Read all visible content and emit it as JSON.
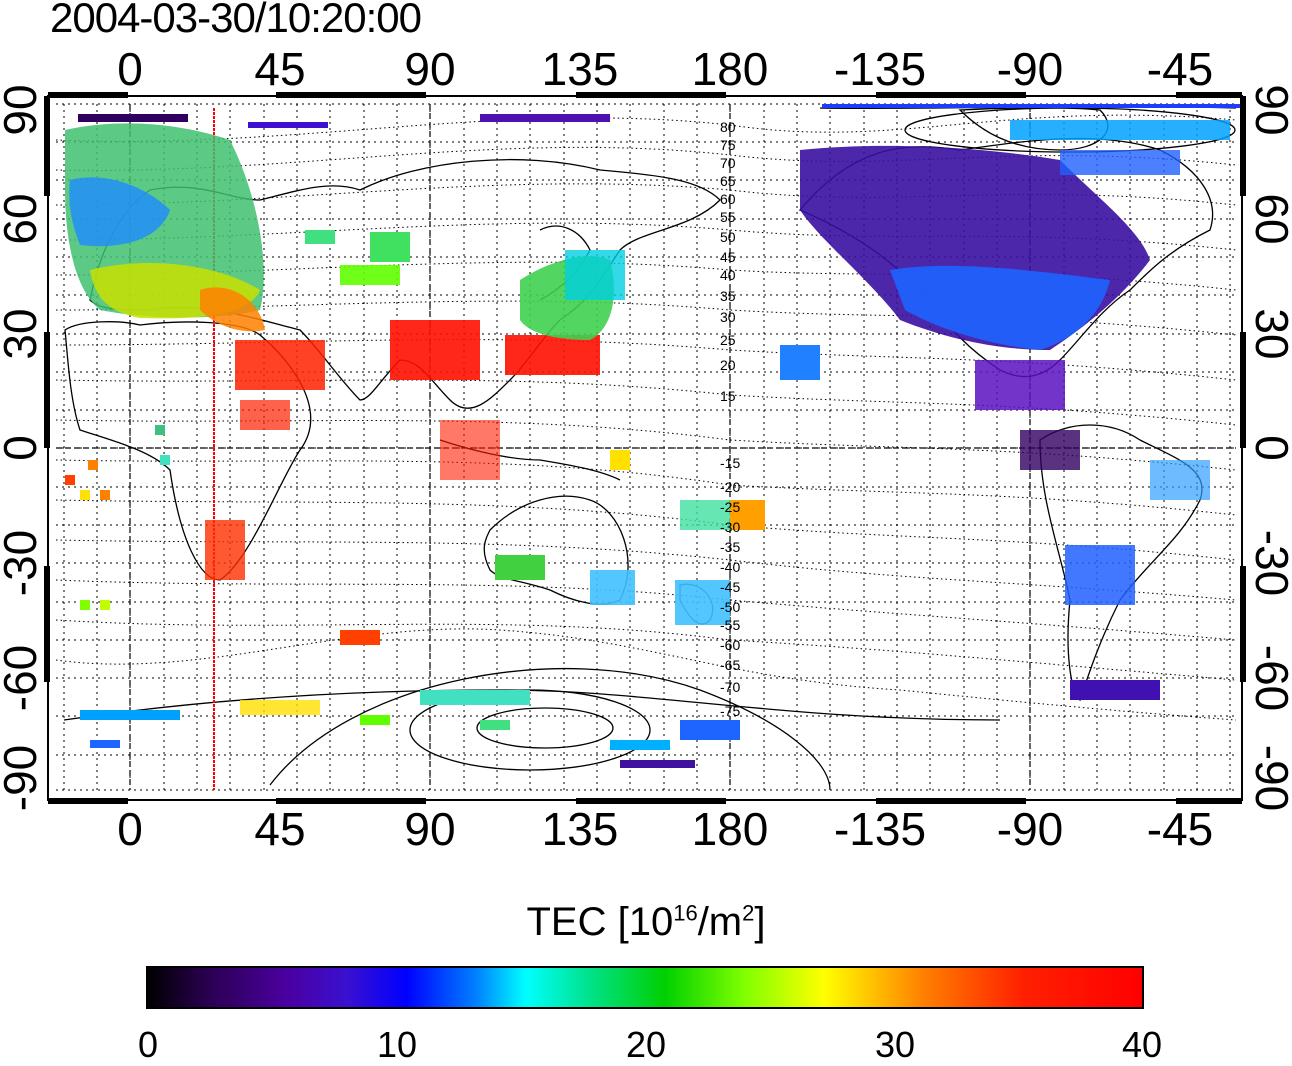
{
  "timestamp": "2004-03-30/10:20:00",
  "map": {
    "lon_ticks_top": [
      "0",
      "45",
      "90",
      "135",
      "180",
      "-135",
      "-90",
      "-45"
    ],
    "lon_ticks_bottom": [
      "0",
      "45",
      "90",
      "135",
      "180",
      "-135",
      "-90",
      "-45"
    ],
    "lat_ticks_left": [
      "90",
      "60",
      "30",
      "0",
      "-30",
      "-60",
      "-90"
    ],
    "lat_ticks_right": [
      "90",
      "60",
      "30",
      "0",
      "-30",
      "-60",
      "-90"
    ],
    "contour_labels_north": [
      "80",
      "75",
      "70",
      "65",
      "60",
      "55",
      "50",
      "45",
      "40",
      "35",
      "30",
      "25",
      "20",
      "15"
    ],
    "contour_labels_south": [
      "-15",
      "-20",
      "-25",
      "-30",
      "-35",
      "-40",
      "-45",
      "-50",
      "-55",
      "-60",
      "-65",
      "-70",
      "-75"
    ],
    "marker_line_color": "#ff0000"
  },
  "colorbar": {
    "title": "TEC  [10",
    "title_sup1": "16",
    "title_mid": "/m",
    "title_sup2": "2",
    "title_end": "]",
    "ticks": [
      "0",
      "10",
      "20",
      "30",
      "40"
    ],
    "colors": [
      "#000000",
      "#4a00a0",
      "#0000ff",
      "#00ffff",
      "#00d000",
      "#ffff00",
      "#ff0000"
    ]
  }
}
